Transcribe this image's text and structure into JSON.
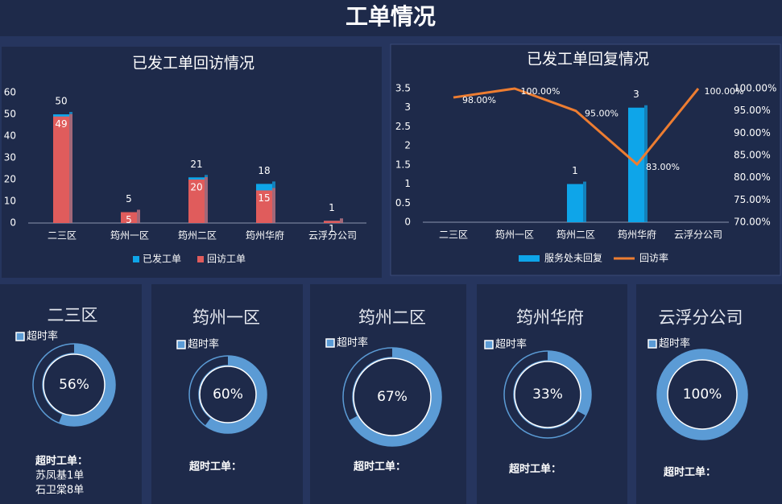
{
  "title": "工单情况",
  "chart_data": [
    {
      "type": "bar",
      "title": "已发工单回访情况",
      "categories": [
        "二三区",
        "筠州一区",
        "筠州二区",
        "筠州华府",
        "云浮分公司"
      ],
      "series": [
        {
          "name": "已发工单",
          "color": "#0ea5e9",
          "values": [
            50,
            5,
            21,
            18,
            1
          ]
        },
        {
          "name": "回访工单",
          "color": "#e05c5c",
          "values": [
            49,
            5,
            20,
            15,
            1
          ]
        }
      ],
      "ylim": [
        0,
        60
      ],
      "yticks": [
        0,
        10,
        20,
        30,
        40,
        50,
        60
      ],
      "legend": "bottom"
    },
    {
      "type": "combo",
      "title": "已发工单回复情况",
      "categories": [
        "二三区",
        "筠州一区",
        "筠州二区",
        "筠州华府",
        "云浮分公司"
      ],
      "series": [
        {
          "name": "服务处未回复",
          "type": "bar",
          "color": "#0ea5e9",
          "values": [
            null,
            null,
            1,
            3,
            null
          ]
        },
        {
          "name": "回访率",
          "type": "line",
          "axis": "y2",
          "color": "#ed7d31",
          "values": [
            98,
            100,
            95,
            83,
            100
          ],
          "value_labels": [
            "98.00%",
            "100.00%",
            "95.00%",
            "83.00%",
            "100.00%"
          ]
        }
      ],
      "ylim": [
        0,
        3.5
      ],
      "yticks": [
        0,
        0.5,
        1,
        1.5,
        2,
        2.5,
        3,
        3.5
      ],
      "y2lim": [
        70,
        100
      ],
      "y2ticks": [
        {
          "value": 70,
          "label": "70.00%"
        },
        {
          "value": 75,
          "label": "75.00%"
        },
        {
          "value": 80,
          "label": "80.00%"
        },
        {
          "value": 85,
          "label": "85.00%"
        },
        {
          "value": 90,
          "label": "90.00%"
        },
        {
          "value": 95,
          "label": "95.00%"
        },
        {
          "value": 100,
          "label": "100.00%"
        }
      ],
      "legend": "bottom"
    },
    {
      "type": "donut",
      "title": "二三区",
      "series": [
        {
          "name": "超时率",
          "color": "#5b9bd5",
          "values": [
            56
          ],
          "value_labels": [
            "56%"
          ]
        }
      ],
      "annotation_title": "超时工单：",
      "annotations": [
        "苏凤基1单",
        "石卫棠8单"
      ]
    },
    {
      "type": "donut",
      "title": "筠州一区",
      "series": [
        {
          "name": "超时率",
          "color": "#5b9bd5",
          "values": [
            60
          ],
          "value_labels": [
            "60%"
          ]
        }
      ],
      "annotation_title": "超时工单：",
      "annotations": []
    },
    {
      "type": "donut",
      "title": "筠州二区",
      "series": [
        {
          "name": "超时率",
          "color": "#5b9bd5",
          "values": [
            67
          ],
          "value_labels": [
            "67%"
          ]
        }
      ],
      "annotation_title": "超时工单：",
      "annotations": []
    },
    {
      "type": "donut",
      "title": "筠州华府",
      "series": [
        {
          "name": "超时率",
          "color": "#5b9bd5",
          "values": [
            33
          ],
          "value_labels": [
            "33%"
          ]
        }
      ],
      "annotation_title": "超时工单：",
      "annotations": []
    },
    {
      "type": "donut",
      "title": "云浮分公司",
      "series": [
        {
          "name": "超时率",
          "color": "#5b9bd5",
          "values": [
            100
          ],
          "value_labels": [
            "100%"
          ]
        }
      ],
      "annotation_title": "超时工单：",
      "annotations": []
    }
  ]
}
